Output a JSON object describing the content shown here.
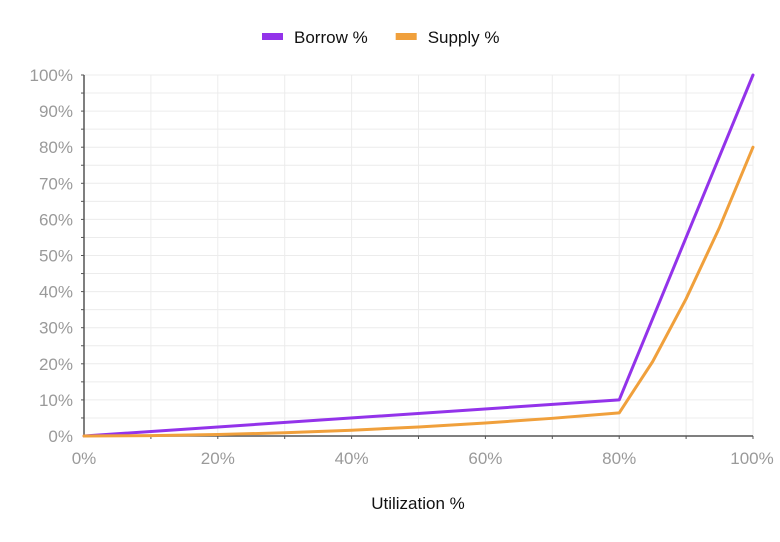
{
  "chart_data": {
    "type": "line",
    "xlabel": "Utilization %",
    "ylabel": "",
    "xlim": [
      0,
      100
    ],
    "ylim": [
      0,
      100
    ],
    "x_ticks": [
      "0%",
      "20%",
      "40%",
      "60%",
      "80%",
      "100%"
    ],
    "y_ticks": [
      "0%",
      "10%",
      "20%",
      "30%",
      "40%",
      "50%",
      "60%",
      "70%",
      "80%",
      "90%",
      "100%"
    ],
    "grid": true,
    "legend": "top-center",
    "series": [
      {
        "name": "Borrow %",
        "color": "#9333ea",
        "points": [
          [
            0,
            0
          ],
          [
            80,
            10
          ],
          [
            100,
            100
          ]
        ]
      },
      {
        "name": "Supply %",
        "color": "#f0a03c",
        "points": [
          [
            0,
            0
          ],
          [
            10,
            0.1
          ],
          [
            20,
            0.4
          ],
          [
            30,
            0.9
          ],
          [
            40,
            1.6
          ],
          [
            50,
            2.5
          ],
          [
            60,
            3.6
          ],
          [
            70,
            4.9
          ],
          [
            80,
            6.4
          ],
          [
            85,
            20.6
          ],
          [
            90,
            38.0
          ],
          [
            95,
            57.8
          ],
          [
            100,
            80
          ]
        ]
      }
    ]
  }
}
